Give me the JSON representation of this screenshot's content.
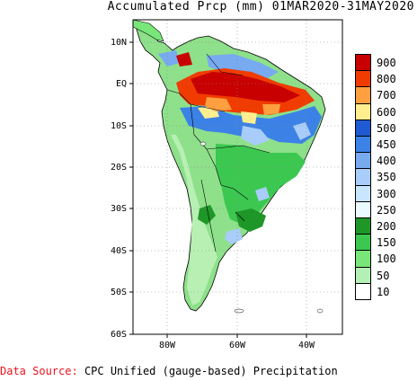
{
  "title": "Accumulated Prcp (mm) 01MAR2020-31MAY2020",
  "footer": {
    "source_label": "Data Source:",
    "source_text": "CPC Unified (gauge-based) Precipitation"
  },
  "axes": {
    "lat_labels": [
      "10N",
      "EQ",
      "10S",
      "20S",
      "30S",
      "40S",
      "50S",
      "60S"
    ],
    "lon_labels": [
      "80W",
      "60W",
      "40W"
    ]
  },
  "legend": {
    "levels": [
      {
        "label": "900",
        "color": "#c80000"
      },
      {
        "label": "800",
        "color": "#f03c00"
      },
      {
        "label": "700",
        "color": "#ffa040"
      },
      {
        "label": "600",
        "color": "#ffee90"
      },
      {
        "label": "500",
        "color": "#1e5ad2"
      },
      {
        "label": "450",
        "color": "#3c82e6"
      },
      {
        "label": "400",
        "color": "#78aaf0"
      },
      {
        "label": "350",
        "color": "#a8cdfa"
      },
      {
        "label": "300",
        "color": "#c8e6ff"
      },
      {
        "label": "250",
        "color": "#ebfaff"
      },
      {
        "label": "200",
        "color": "#1e9628"
      },
      {
        "label": "150",
        "color": "#3cc850"
      },
      {
        "label": "100",
        "color": "#78e678"
      },
      {
        "label": "50",
        "color": "#b4f0b4"
      },
      {
        "label": "10",
        "color": "#ffffff"
      }
    ]
  }
}
